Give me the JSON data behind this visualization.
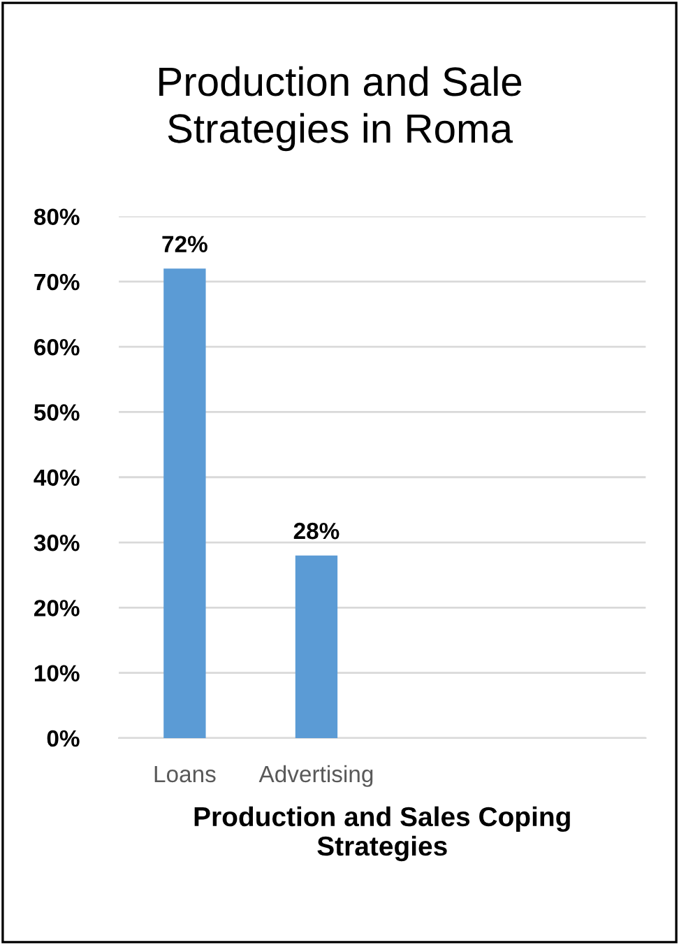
{
  "chart_data": {
    "type": "bar",
    "title": "Production and Sale\nStrategies in Roma",
    "xlabel": "Production and Sales Coping\nStrategies",
    "categories": [
      "Loans",
      "Advertising",
      null,
      null
    ],
    "values": [
      72,
      28,
      null,
      null
    ],
    "color": "#5b9bd5",
    "ylim": [
      0,
      80
    ],
    "yticks": [
      {
        "value": 0,
        "label": "0%"
      },
      {
        "value": 10,
        "label": "10%"
      },
      {
        "value": 20,
        "label": "20%"
      },
      {
        "value": 30,
        "label": "30%"
      },
      {
        "value": 40,
        "label": "40%"
      },
      {
        "value": 50,
        "label": "50%"
      },
      {
        "value": 60,
        "label": "60%"
      },
      {
        "value": 70,
        "label": "70%"
      },
      {
        "value": 80,
        "label": "80%"
      }
    ],
    "value_labels": [
      "72%",
      "28%",
      null,
      null
    ],
    "grid": "y",
    "legend": false
  }
}
